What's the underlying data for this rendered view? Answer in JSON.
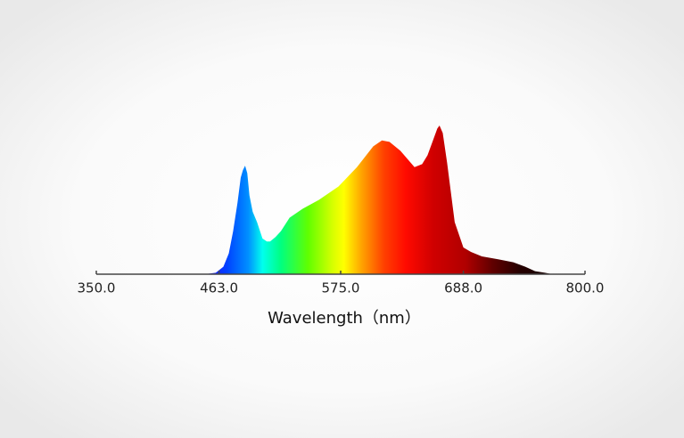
{
  "chart_data": {
    "type": "area",
    "x_label": "Wavelength（nm）",
    "x": [
      430,
      450,
      460,
      467,
      472,
      476,
      480,
      483,
      485,
      487,
      489,
      491,
      494,
      498,
      503,
      507,
      510,
      515,
      520,
      528,
      540,
      555,
      573,
      590,
      605,
      613,
      620,
      630,
      643,
      650,
      655,
      660,
      664,
      666,
      669,
      673,
      680,
      688,
      695,
      705,
      720,
      734,
      745,
      754,
      763,
      770,
      780
    ],
    "values": [
      0,
      0,
      1,
      5,
      14,
      29,
      48,
      65,
      70,
      73,
      68,
      53,
      42,
      35,
      24,
      22,
      22,
      25,
      29,
      38,
      44,
      50,
      59,
      72,
      86,
      90,
      89,
      83,
      72,
      74,
      80,
      90,
      98,
      100,
      95,
      75,
      35,
      18,
      15,
      12,
      10,
      8,
      5,
      2,
      1,
      0,
      0
    ],
    "xlim": [
      350,
      800
    ],
    "xticks": [
      {
        "value": 350,
        "label": "350.0"
      },
      {
        "value": 463,
        "label": "463.0"
      },
      {
        "value": 575,
        "label": "575.0"
      },
      {
        "value": 688,
        "label": "688.0"
      },
      {
        "value": 800,
        "label": "800.0"
      }
    ]
  }
}
